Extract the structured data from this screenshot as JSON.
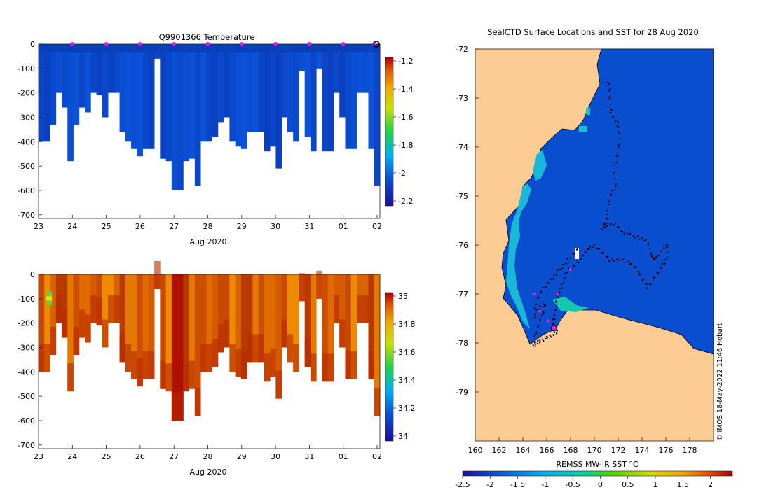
{
  "figure": {
    "copyright": "© IMOS 18-May-2022 11:46 Hobart"
  },
  "chart_data": [
    {
      "id": "temperature",
      "type": "heatmap",
      "title": "Q9901366  Temperature",
      "xlabel": "Aug 2020",
      "xticks": [
        "23",
        "24",
        "25",
        "26",
        "27",
        "28",
        "29",
        "30",
        "31",
        "01",
        "02"
      ],
      "yticks": [
        "0",
        "-100",
        "-200",
        "-300",
        "-400",
        "-500",
        "-600",
        "-700"
      ],
      "ylim": [
        -715,
        0
      ],
      "profile_depths_m": [
        400,
        400,
        330,
        200,
        260,
        480,
        330,
        260,
        280,
        200,
        210,
        300,
        200,
        200,
        360,
        400,
        430,
        460,
        430,
        430,
        60,
        470,
        480,
        600,
        600,
        480,
        470,
        580,
        400,
        400,
        380,
        320,
        300,
        400,
        420,
        430,
        360,
        360,
        360,
        440,
        420,
        510,
        300,
        360,
        400,
        110,
        380,
        440,
        100,
        440,
        440,
        200,
        300,
        430,
        430,
        200,
        200,
        430,
        580
      ],
      "colorbar": {
        "ticks": [
          "-1.2",
          "-1.4",
          "-1.6",
          "-1.8",
          "-2",
          "-2.2"
        ],
        "range": [
          -2.25,
          -1.15
        ]
      },
      "markers": {
        "color": "#e020e0",
        "positions": [
          "24",
          "25",
          "26",
          "27",
          "28",
          "29",
          "30",
          "31",
          "01",
          "02"
        ]
      }
    },
    {
      "id": "salinity",
      "type": "heatmap",
      "title": "",
      "xlabel": "Aug 2020",
      "xticks": [
        "23",
        "24",
        "25",
        "26",
        "27",
        "28",
        "29",
        "30",
        "31",
        "01",
        "02"
      ],
      "yticks": [
        "0",
        "-100",
        "-200",
        "-300",
        "-400",
        "-500",
        "-600",
        "-700"
      ],
      "ylim": [
        -715,
        0
      ],
      "colorbar": {
        "ticks": [
          "35",
          "34.8",
          "34.6",
          "34.4",
          "34.2",
          "34"
        ],
        "range": [
          33.85,
          35.1
        ]
      }
    },
    {
      "id": "sst-map",
      "type": "heatmap",
      "title": "SealCTD Surface Locations and SST for 28 Aug 2020",
      "xlabel": "",
      "xticks": [
        "160",
        "162",
        "164",
        "166",
        "168",
        "170",
        "172",
        "174",
        "176",
        "178"
      ],
      "yticks": [
        "-72",
        "-73",
        "-74",
        "-75",
        "-76",
        "-77",
        "-78",
        "-79"
      ],
      "xlim": [
        160,
        180
      ],
      "ylim": [
        -80,
        -72
      ],
      "colorbar": {
        "label": "REMSS MW-IR SST °C",
        "ticks": [
          "-2.5",
          "-2",
          "-1.5",
          "-1",
          "-0.5",
          "0",
          "0.5",
          "1",
          "1.5",
          "2"
        ],
        "range": [
          -2.5,
          2.4
        ]
      },
      "track": [
        [
          171.2,
          -72.65
        ],
        [
          171.3,
          -72.95
        ],
        [
          171.4,
          -73.3
        ],
        [
          171.9,
          -73.5
        ],
        [
          172.1,
          -73.75
        ],
        [
          172.0,
          -74.1
        ],
        [
          171.6,
          -74.5
        ],
        [
          171.8,
          -74.8
        ],
        [
          171.3,
          -75.0
        ],
        [
          171.1,
          -75.4
        ],
        [
          170.7,
          -75.65
        ],
        [
          171.0,
          -75.6
        ],
        [
          171.8,
          -75.55
        ],
        [
          172.4,
          -75.75
        ],
        [
          173.0,
          -75.8
        ],
        [
          173.8,
          -75.85
        ],
        [
          174.5,
          -75.95
        ],
        [
          174.8,
          -76.2
        ],
        [
          175.0,
          -76.3
        ],
        [
          175.3,
          -76.25
        ],
        [
          175.7,
          -76.1
        ],
        [
          176.2,
          -76.0
        ],
        [
          176.0,
          -76.3
        ],
        [
          175.5,
          -76.5
        ],
        [
          175.0,
          -76.7
        ],
        [
          174.5,
          -76.85
        ],
        [
          174.0,
          -76.7
        ],
        [
          173.5,
          -76.45
        ],
        [
          172.8,
          -76.35
        ],
        [
          172.0,
          -76.3
        ],
        [
          171.3,
          -76.3
        ],
        [
          170.6,
          -76.15
        ],
        [
          170.0,
          -76.0
        ],
        [
          169.4,
          -76.1
        ],
        [
          169.0,
          -76.25
        ],
        [
          168.4,
          -76.4
        ],
        [
          167.7,
          -76.55
        ],
        [
          167.3,
          -76.8
        ],
        [
          167.0,
          -77.0
        ],
        [
          166.8,
          -77.2
        ],
        [
          166.7,
          -77.4
        ],
        [
          166.5,
          -77.6
        ],
        [
          166.9,
          -77.75
        ],
        [
          166.5,
          -77.85
        ],
        [
          166.0,
          -77.9
        ],
        [
          165.5,
          -77.95
        ],
        [
          165.2,
          -78.0
        ],
        [
          164.9,
          -78.05
        ],
        [
          165.2,
          -77.7
        ],
        [
          165.6,
          -77.45
        ],
        [
          165.9,
          -77.2
        ],
        [
          165.3,
          -77.3
        ],
        [
          164.9,
          -77.5
        ],
        [
          165.2,
          -77.1
        ],
        [
          165.7,
          -76.9
        ],
        [
          166.2,
          -76.75
        ],
        [
          166.8,
          -76.6
        ],
        [
          167.4,
          -76.4
        ],
        [
          168.2,
          -76.2
        ],
        [
          168.8,
          -76.05
        ]
      ],
      "track_markers": [
        [
          165.0,
          -77.0
        ],
        [
          165.4,
          -77.35
        ],
        [
          166.1,
          -77.55
        ],
        [
          166.9,
          -77.0
        ],
        [
          168.0,
          -76.5
        ],
        [
          166.6,
          -77.7
        ]
      ]
    }
  ]
}
